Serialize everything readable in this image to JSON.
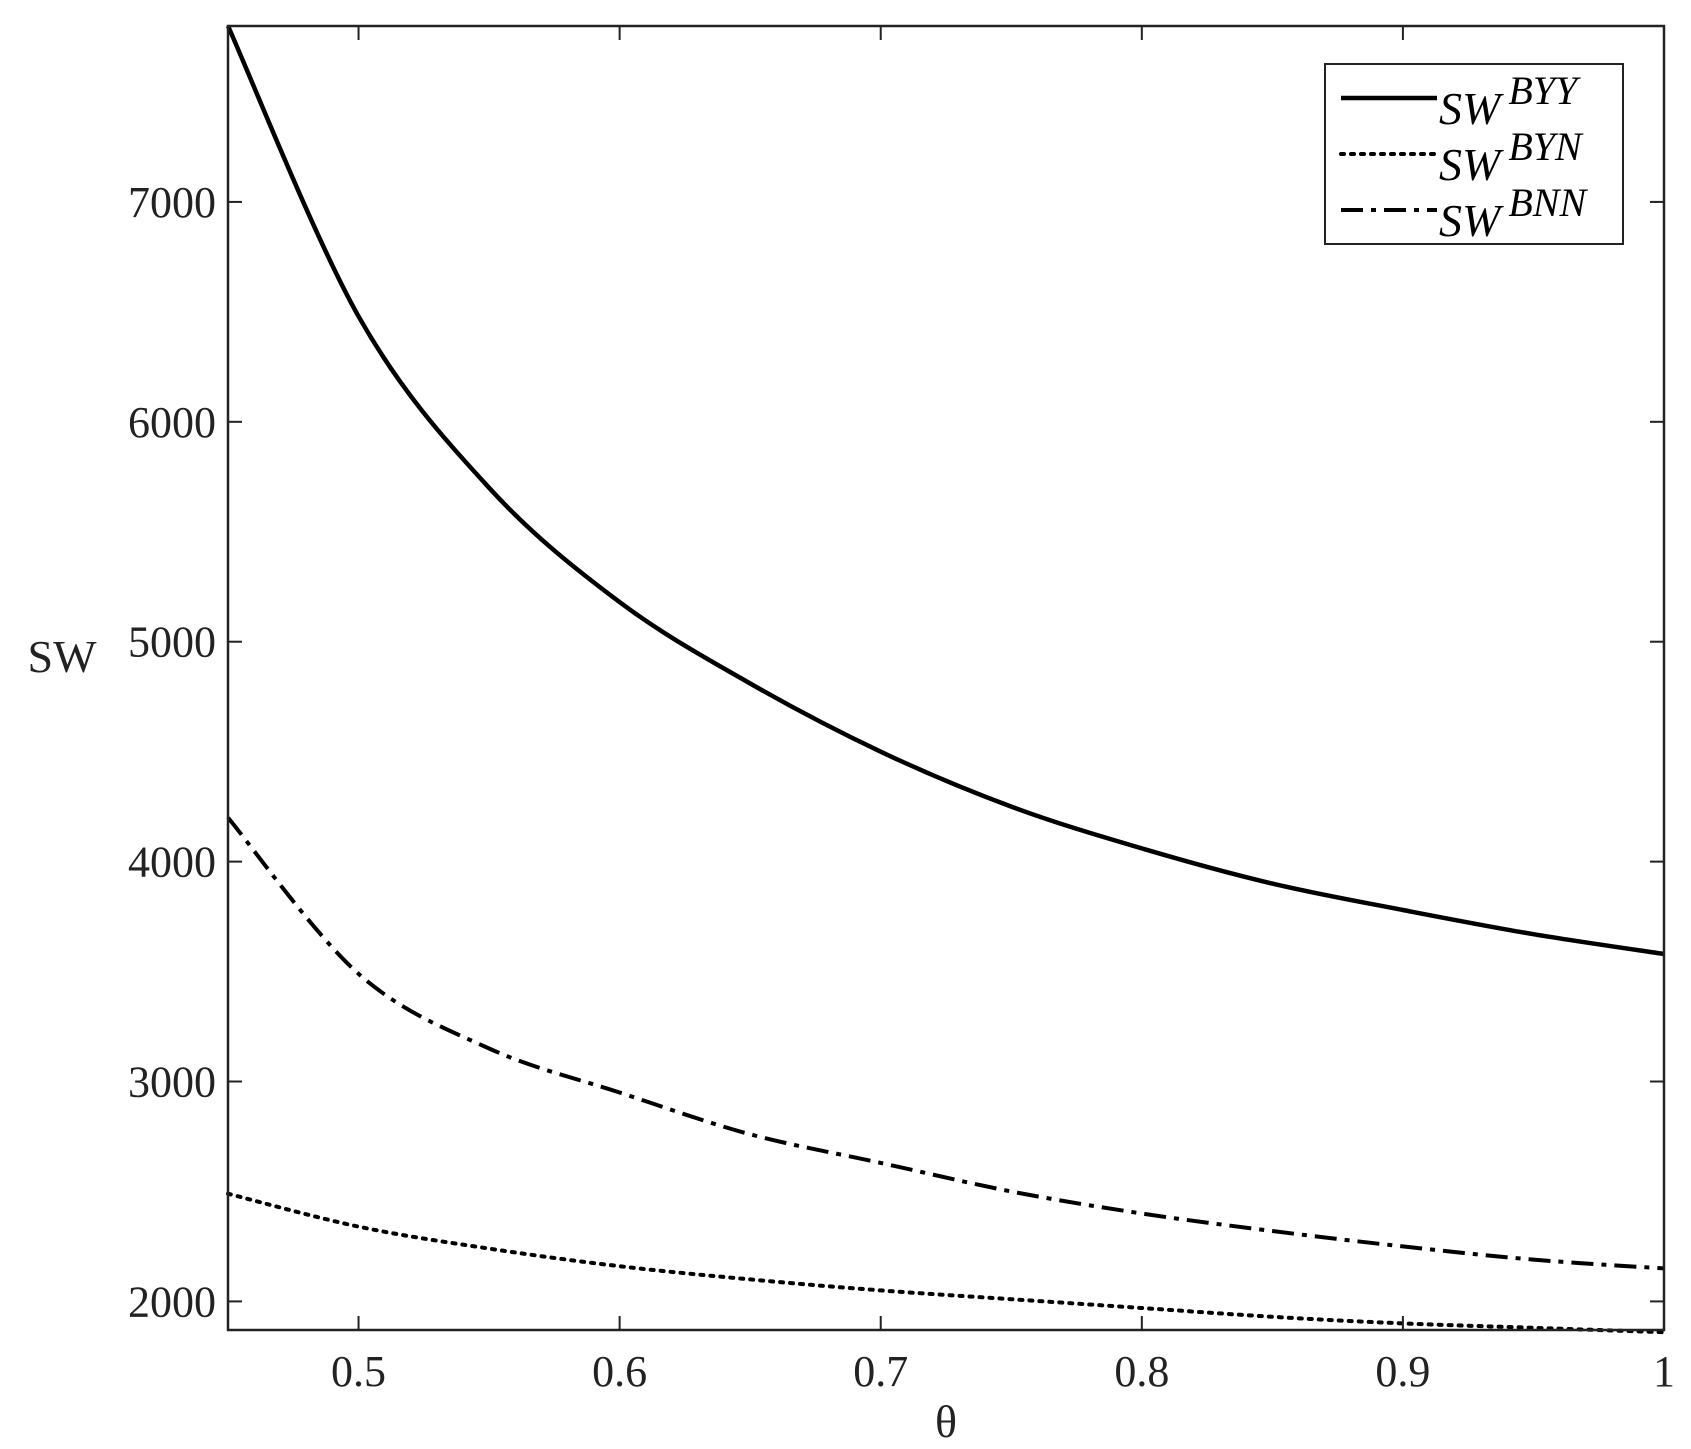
{
  "chart_data": {
    "type": "line",
    "xlabel": "θ",
    "ylabel": "SW",
    "xlim": [
      0.45,
      1.0
    ],
    "ylim": [
      1870,
      7800
    ],
    "xticks": [
      0.5,
      0.6,
      0.7,
      0.8,
      0.9,
      1.0
    ],
    "xtick_labels": [
      "0.5",
      "0.6",
      "0.7",
      "0.8",
      "0.9",
      "1"
    ],
    "yticks": [
      2000,
      3000,
      4000,
      5000,
      6000,
      7000
    ],
    "ytick_labels": [
      "2000",
      "3000",
      "4000",
      "5000",
      "6000",
      "7000"
    ],
    "grid": false,
    "legend_position": "top-right",
    "x": [
      0.45,
      0.5,
      0.55,
      0.6,
      0.65,
      0.7,
      0.75,
      0.8,
      0.85,
      0.9,
      0.95,
      1.0
    ],
    "series": [
      {
        "name": "SW^BYY",
        "name_base": "SW",
        "name_sup": "BYY",
        "line_style": "solid",
        "values": [
          7800,
          6480,
          5700,
          5180,
          4810,
          4500,
          4250,
          4060,
          3900,
          3780,
          3670,
          3580
        ]
      },
      {
        "name": "SW^BYN",
        "name_base": "SW",
        "name_sup": "BYN",
        "line_style": "dotted",
        "values": [
          2490,
          2340,
          2240,
          2160,
          2100,
          2050,
          2010,
          1970,
          1930,
          1900,
          1880,
          1860
        ]
      },
      {
        "name": "SW^BNN",
        "name_base": "SW",
        "name_sup": "BNN",
        "line_style": "dashdot",
        "values": [
          4200,
          3490,
          3150,
          2950,
          2760,
          2630,
          2500,
          2400,
          2320,
          2250,
          2190,
          2150
        ]
      }
    ],
    "colors": {
      "line": "#000000",
      "axis": "#222222"
    }
  }
}
